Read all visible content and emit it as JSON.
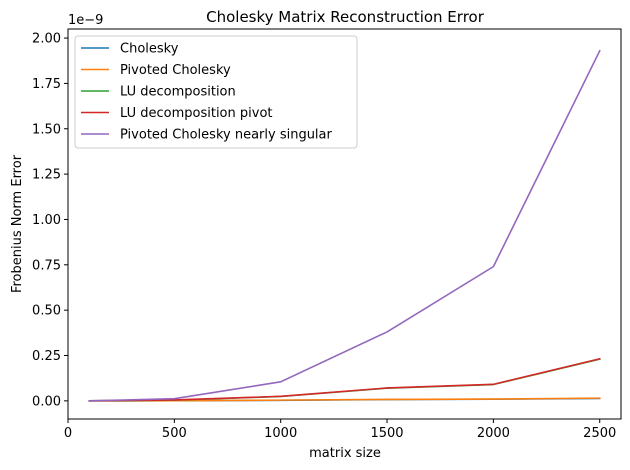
{
  "chart_data": {
    "type": "line",
    "title": "Cholesky Matrix Reconstruction Error",
    "xlabel": "matrix size",
    "ylabel": "Frobenius Norm Error",
    "y_offset_text": "1e−9",
    "y_scale": 1e-09,
    "xlim": [
      0,
      2600
    ],
    "ylim": [
      -0.1,
      2.05
    ],
    "x_ticks": [
      0,
      500,
      1000,
      1500,
      2000,
      2500
    ],
    "x_tick_labels": [
      "0",
      "500",
      "1000",
      "1500",
      "2000",
      "2500"
    ],
    "y_ticks": [
      0.0,
      0.25,
      0.5,
      0.75,
      1.0,
      1.25,
      1.5,
      1.75,
      2.0
    ],
    "y_tick_labels": [
      "0.00",
      "0.25",
      "0.50",
      "0.75",
      "1.00",
      "1.25",
      "1.50",
      "1.75",
      "2.00"
    ],
    "grid": false,
    "legend_position": "upper-left",
    "x": [
      100,
      500,
      1000,
      1500,
      2000,
      2500
    ],
    "series": [
      {
        "name": "Cholesky",
        "color": "#1f77b4",
        "values": [
          0.0,
          0.001,
          0.003,
          0.007,
          0.009,
          0.013
        ]
      },
      {
        "name": "Pivoted Cholesky",
        "color": "#ff7f0e",
        "values": [
          0.0,
          0.001,
          0.004,
          0.008,
          0.01,
          0.015
        ]
      },
      {
        "name": "LU decomposition",
        "color": "#2ca02c",
        "values": [
          0.0,
          0.004,
          0.024,
          0.07,
          0.09,
          0.23
        ]
      },
      {
        "name": "LU decomposition pivot",
        "color": "#d62728",
        "values": [
          0.0,
          0.005,
          0.025,
          0.071,
          0.091,
          0.232
        ]
      },
      {
        "name": "Pivoted Cholesky nearly singular",
        "color": "#9467bd",
        "values": [
          0.0,
          0.012,
          0.105,
          0.38,
          0.74,
          1.93
        ]
      }
    ]
  }
}
